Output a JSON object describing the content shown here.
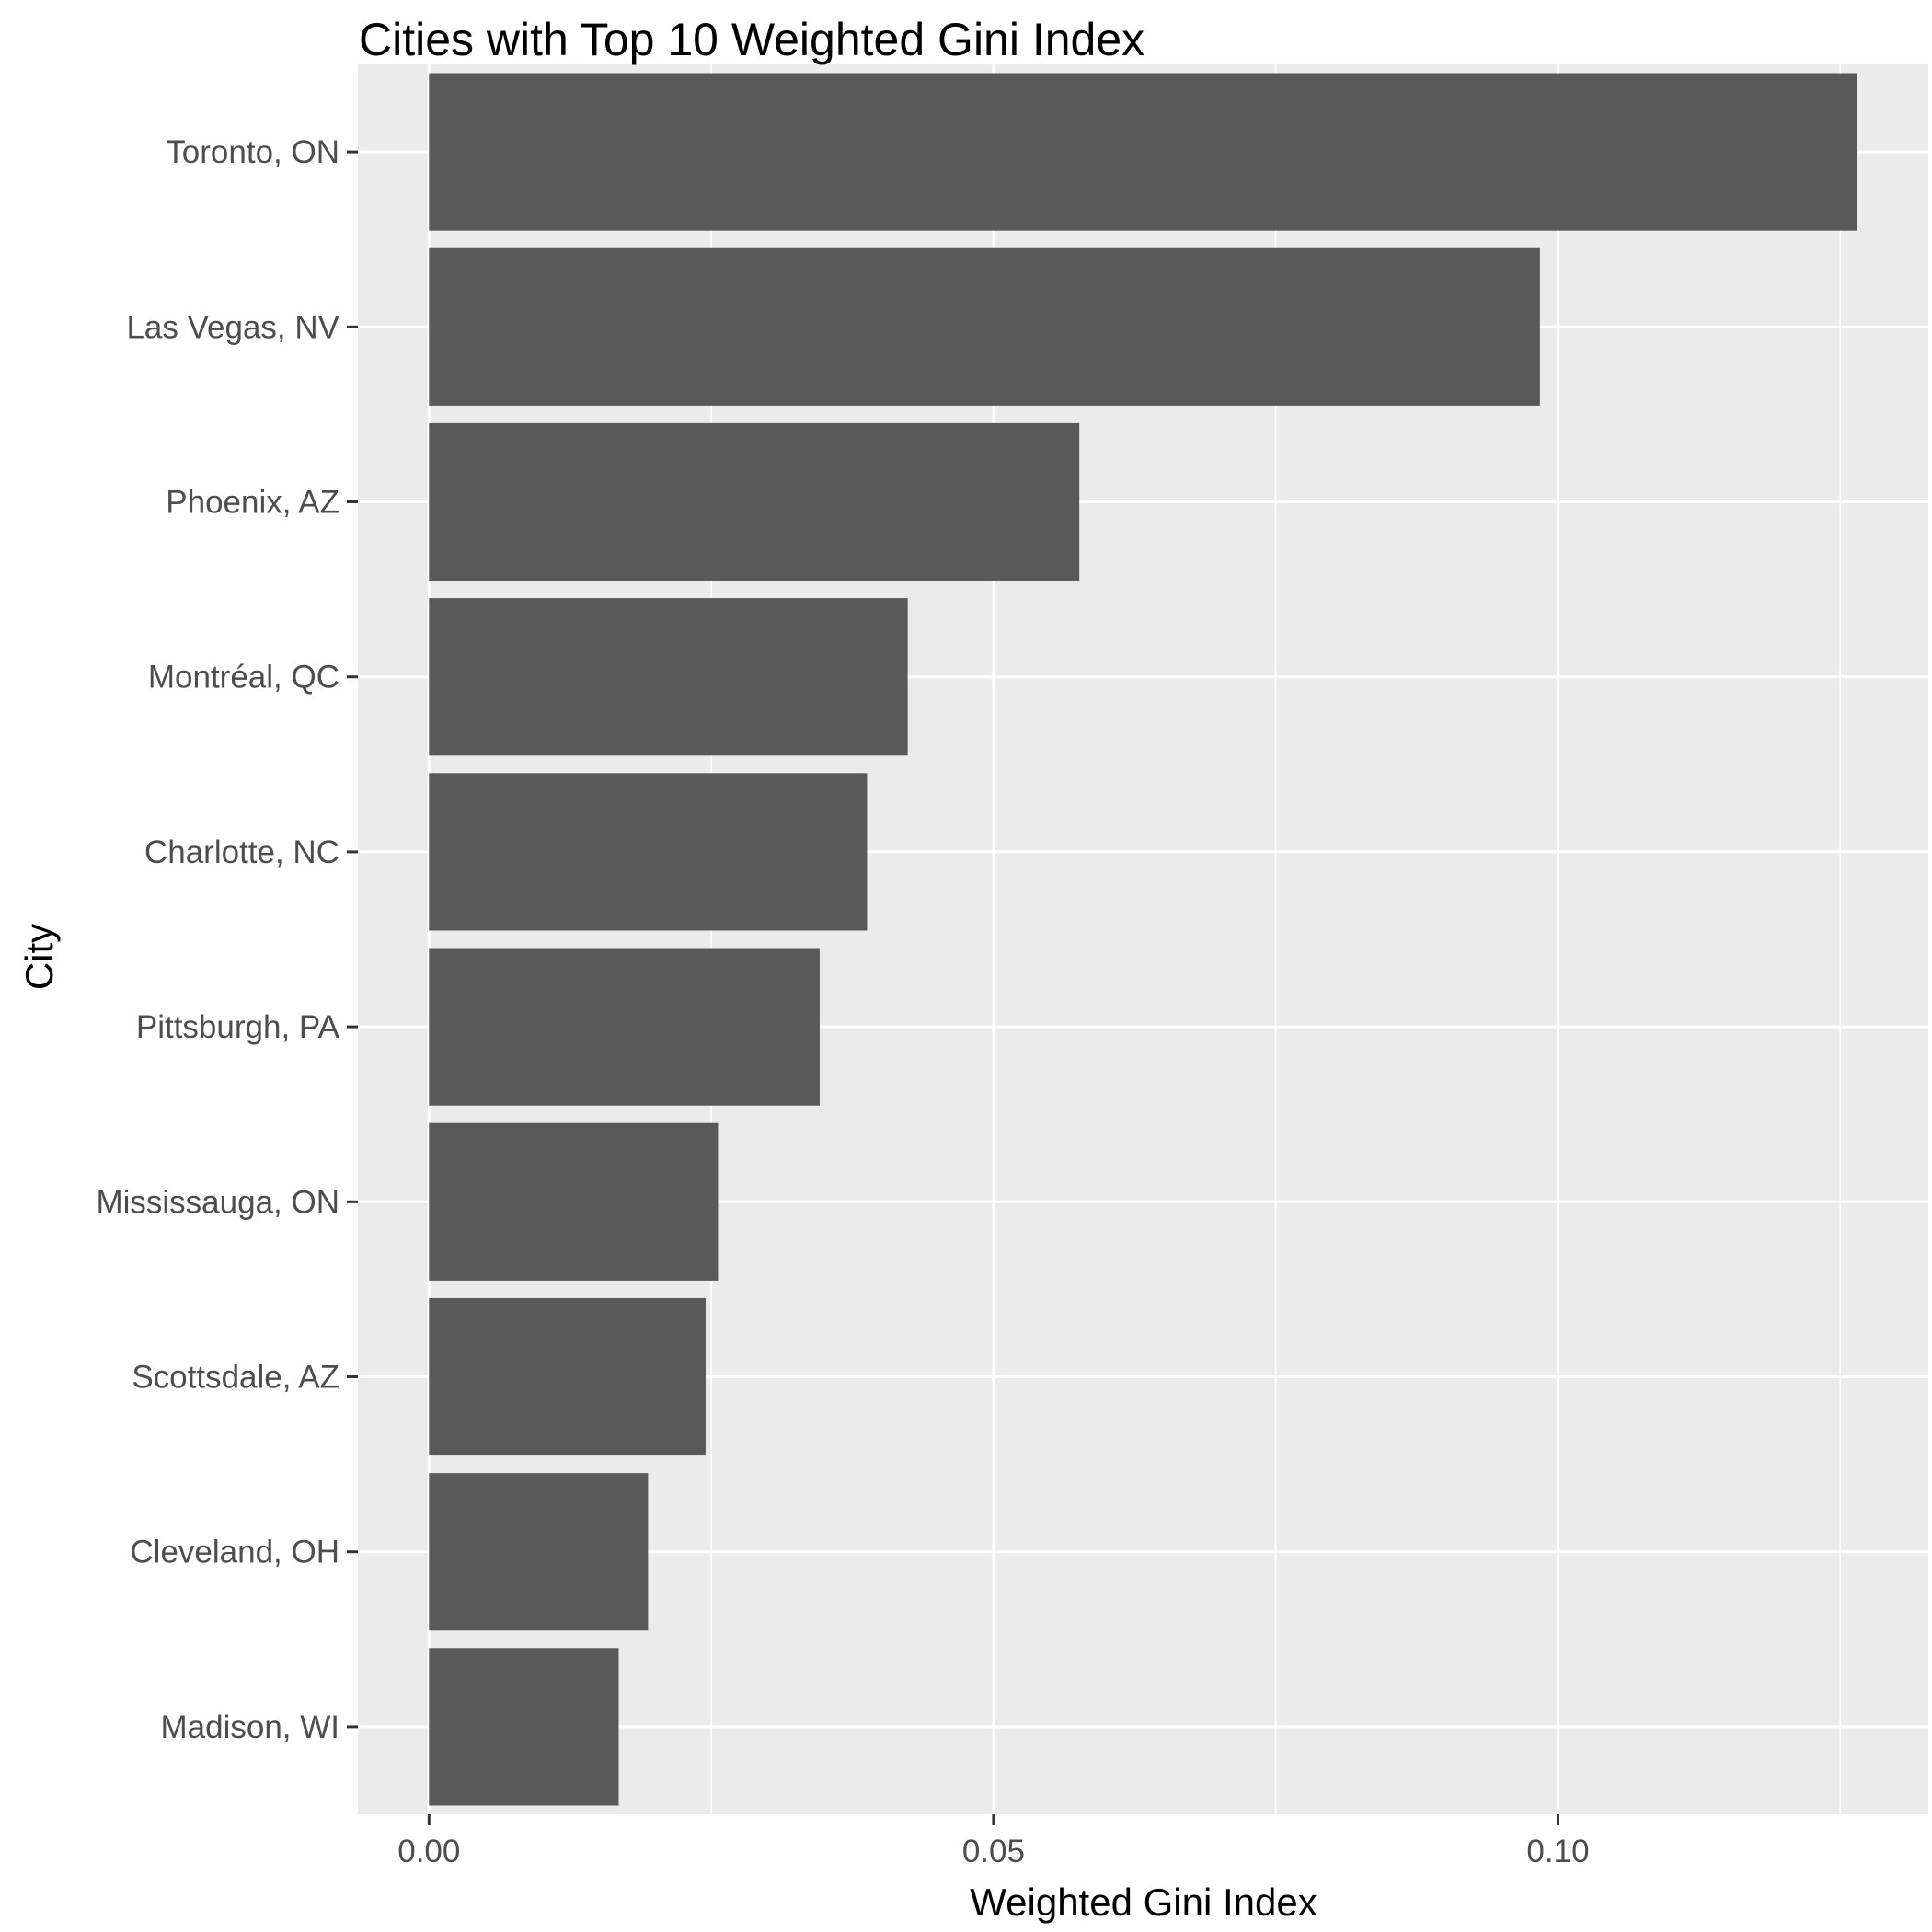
{
  "chart_data": {
    "type": "bar",
    "orientation": "horizontal",
    "title": "Cities with Top 10 Weighted Gini Index",
    "xlabel": "Weighted Gini Index",
    "ylabel": "City",
    "categories": [
      "Toronto, ON",
      "Las Vegas, NV",
      "Phoenix, AZ",
      "Montréal, QC",
      "Charlotte, NC",
      "Pittsburgh, PA",
      "Mississauga, ON",
      "Scottsdale, AZ",
      "Cleveland, OH",
      "Madison, WI"
    ],
    "values": [
      0.1265,
      0.0984,
      0.0576,
      0.0424,
      0.0388,
      0.0346,
      0.0256,
      0.0245,
      0.0194,
      0.0168
    ],
    "xlim": [
      -0.0063,
      0.1328
    ],
    "x_ticks": [
      0.0,
      0.05,
      0.1
    ],
    "x_tick_labels": [
      "0.00",
      "0.05",
      "0.10"
    ],
    "grid": true,
    "legend": "none",
    "colors": {
      "bar": "#595959",
      "panel": "#ebebeb",
      "grid": "#ffffff",
      "tick": "#333333"
    }
  }
}
